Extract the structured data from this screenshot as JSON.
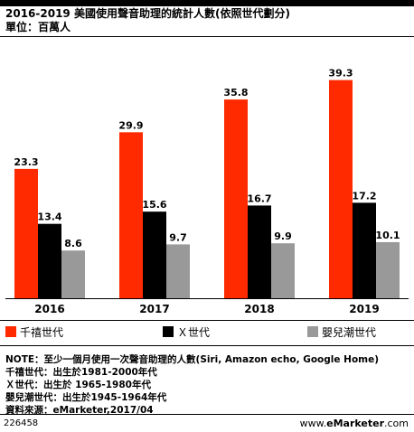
{
  "header": {
    "title": "2016-2019 美國使用聲音助理的統計人數(依照世代劃分)",
    "subtitle": "單位：百萬人"
  },
  "chart_data": {
    "type": "bar",
    "categories": [
      "2016",
      "2017",
      "2018",
      "2019"
    ],
    "series": [
      {
        "name": "千禧世代",
        "color": "#ff2a00",
        "values": [
          23.3,
          29.9,
          35.8,
          39.3
        ]
      },
      {
        "name": "Ｘ世代",
        "color": "#000000",
        "values": [
          13.4,
          15.6,
          16.7,
          17.2
        ]
      },
      {
        "name": "嬰兒潮世代",
        "color": "#999999",
        "values": [
          8.6,
          9.7,
          9.9,
          10.1
        ]
      }
    ],
    "ylim": [
      0,
      42
    ],
    "grid": false,
    "value_labels": true,
    "legend_position": "bottom"
  },
  "notes": [
    "NOTE：至少一個月使用一次聲音助理的人數(Siri, Amazon echo, Google Home)",
    "千禧世代：出生於1981-2000年代",
    "Ｘ世代：出生於 1965-1980年代",
    "嬰兒潮世代：出生於1945-1964年代",
    "資料來源：eMarketer,2017/04"
  ],
  "footer": {
    "id": "226458",
    "brand_prefix": "www.",
    "brand_bold": "eMarketer",
    "brand_suffix": ".com"
  }
}
